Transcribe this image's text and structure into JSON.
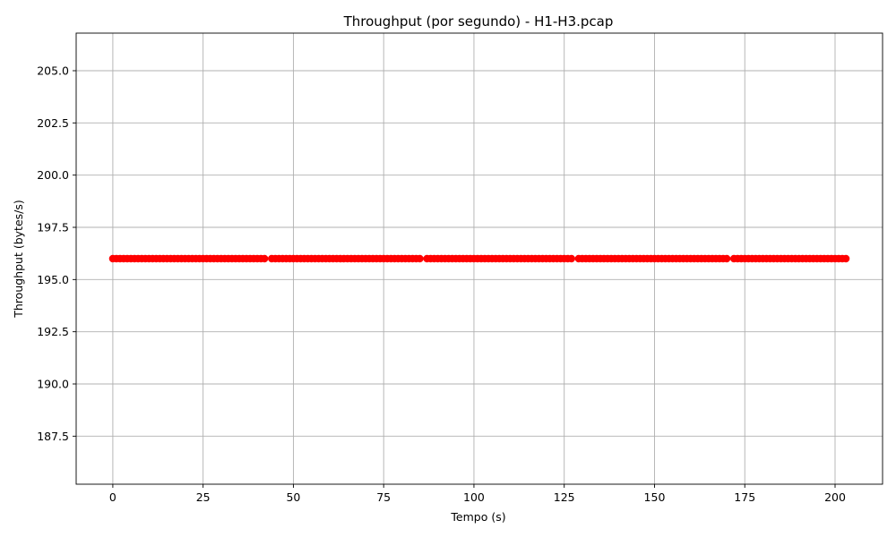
{
  "chart_data": {
    "type": "scatter",
    "title": "Throughput (por segundo) - H1-H3.pcap",
    "xlabel": "Tempo (s)",
    "ylabel": "Throughput (bytes/s)",
    "xlim": [
      -10.15,
      213.15
    ],
    "ylim": [
      185.2,
      206.8
    ],
    "xticks": [
      0,
      25,
      50,
      75,
      100,
      125,
      150,
      175,
      200
    ],
    "xtick_labels": [
      "0",
      "25",
      "50",
      "75",
      "100",
      "125",
      "150",
      "175",
      "200"
    ],
    "yticks": [
      187.5,
      190.0,
      192.5,
      195.0,
      197.5,
      200.0,
      202.5,
      205.0
    ],
    "ytick_labels": [
      "187.5",
      "190.0",
      "192.5",
      "195.0",
      "197.5",
      "200.0",
      "202.5",
      "205.0"
    ],
    "grid": true,
    "marker_color": "#ff0000",
    "series": [
      {
        "segments": [
          {
            "x_start": 0,
            "x_end": 42,
            "y": 196
          },
          {
            "x_start": 44,
            "x_end": 85,
            "y": 196
          },
          {
            "x_start": 87,
            "x_end": 127,
            "y": 196
          },
          {
            "x_start": 129,
            "x_end": 170,
            "y": 196
          },
          {
            "x_start": 172,
            "x_end": 203,
            "y": 196
          }
        ]
      }
    ]
  }
}
